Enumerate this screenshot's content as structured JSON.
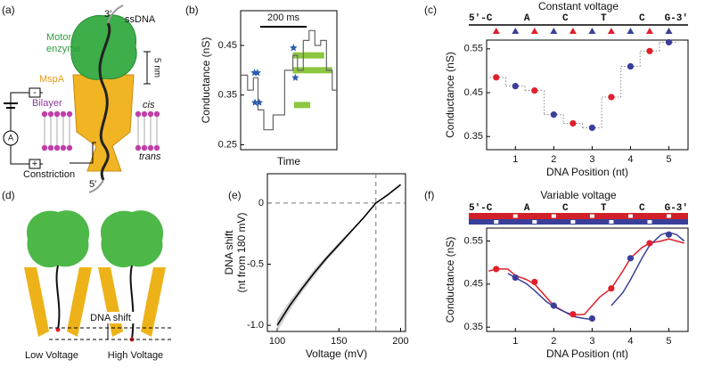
{
  "panel_labels": [
    "(a)",
    "(b)",
    "(c)",
    "(d)",
    "(e)",
    "(f)"
  ],
  "diagram_a": {
    "three_prime": "3′",
    "ssdna": "ssDNA",
    "motor": "Motor",
    "enzyme": "enzyme",
    "mspa": "MspA",
    "bilayer": "Bilayer",
    "scale": "5 nm",
    "cis": "cis",
    "trans": "trans",
    "constriction": "Constriction",
    "five_prime": "5′",
    "ammeter": "A",
    "minus": "-",
    "plus": "+"
  },
  "diagram_d": {
    "shift": "DNA shift",
    "low": "Low Voltage",
    "high": "High Voltage"
  },
  "chart_data": [
    {
      "type": "line",
      "xlabel": "Time",
      "ylabel": "Conductance (nS)",
      "xlim": [
        0,
        415
      ],
      "ylim": [
        0.24,
        0.52
      ],
      "yticks": [
        0.25,
        0.35,
        0.45
      ],
      "scalebar": {
        "length": 200,
        "label": "200 ms"
      },
      "x": [
        0,
        30,
        30,
        55,
        55,
        75,
        75,
        100,
        100,
        140,
        140,
        190,
        190,
        225,
        225,
        245,
        245,
        270,
        270,
        295,
        295,
        320,
        320,
        345,
        345,
        370,
        370,
        395,
        395,
        415
      ],
      "series": [
        {
          "color": "#666666",
          "values": [
            0.39,
            0.39,
            0.36,
            0.36,
            0.385,
            0.385,
            0.32,
            0.32,
            0.28,
            0.28,
            0.31,
            0.31,
            0.4,
            0.4,
            0.43,
            0.43,
            0.4,
            0.4,
            0.46,
            0.46,
            0.48,
            0.48,
            0.45,
            0.45,
            0.46,
            0.46,
            0.4,
            0.4,
            0.36,
            0.36
          ]
        }
      ],
      "markers": {
        "color": "#2a5caa",
        "x": [
          60,
          72,
          62,
          80,
          228,
          236
        ],
        "values": [
          0.395,
          0.395,
          0.335,
          0.335,
          0.445,
          0.385
        ]
      },
      "highlights": {
        "color": "#8dc63f",
        "x_start": [
          225,
          225,
          230
        ],
        "x_end": [
          395,
          360,
          300
        ],
        "values": [
          0.4,
          0.43,
          0.33
        ]
      }
    },
    {
      "type": "scatter",
      "title": "Constant voltage",
      "sequence": [
        "5′-C",
        "A",
        "C",
        "T",
        "C",
        "G-3′"
      ],
      "xlabel": "DNA Position (nt)",
      "ylabel": "Conductance (nS)",
      "xlim": [
        0.25,
        5.5
      ],
      "ylim": [
        0.32,
        0.57
      ],
      "xticks": [
        1,
        2,
        3,
        4,
        5
      ],
      "yticks": [
        0.35,
        0.45,
        0.55
      ],
      "series": [
        {
          "color": "#e0202a",
          "x": [
            0.5,
            1.5,
            2.5,
            3.5,
            4.5
          ],
          "values": [
            0.485,
            0.455,
            0.38,
            0.44,
            0.545
          ]
        },
        {
          "color": "#3a3f9a",
          "x": [
            1,
            2,
            3,
            4,
            5
          ],
          "values": [
            0.465,
            0.4,
            0.37,
            0.51,
            0.565
          ]
        }
      ]
    },
    {
      "type": "line",
      "xlabel": "Voltage (mV)",
      "ylabel": [
        "DNA shift",
        "(nt from 180 mV)"
      ],
      "xlim": [
        92,
        204
      ],
      "ylim": [
        -1.05,
        0.24
      ],
      "xticks": [
        100,
        150,
        200
      ],
      "yticks": [
        {
          "value": -1,
          "label": "-1.0"
        },
        -0.5,
        0
      ],
      "x": [
        100,
        110,
        120,
        130,
        140,
        150,
        160,
        170,
        180,
        190,
        200
      ],
      "series": [
        {
          "color": "#000000",
          "values": [
            -1.0,
            -0.84,
            -0.7,
            -0.57,
            -0.45,
            -0.34,
            -0.23,
            -0.12,
            0,
            0.07,
            0.15
          ],
          "lower": [
            -1.05,
            -0.88,
            -0.73,
            -0.6,
            -0.47,
            -0.36,
            -0.24,
            -0.125,
            0,
            0.065,
            0.14
          ],
          "upper": [
            -0.95,
            -0.8,
            -0.67,
            -0.54,
            -0.43,
            -0.32,
            -0.22,
            -0.115,
            0,
            0.075,
            0.16
          ]
        }
      ],
      "reference_lines": {
        "y": 0,
        "x": 180
      }
    },
    {
      "type": "scatter",
      "title": "Variable voltage",
      "sequence": [
        "5′-C",
        "A",
        "C",
        "T",
        "C",
        "G-3′"
      ],
      "xlabel": "DNA Position (nt)",
      "ylabel": "Conductance (nS)",
      "xlim": [
        0.25,
        5.5
      ],
      "ylim": [
        0.34,
        0.58
      ],
      "xticks": [
        1,
        2,
        3,
        4,
        5
      ],
      "yticks": [
        0.35,
        0.45,
        0.55
      ],
      "series": [
        {
          "color": "#e0202a",
          "x": [
            0.5,
            1.5,
            2.5,
            3.5,
            4.5
          ],
          "values": [
            0.485,
            0.455,
            0.38,
            0.44,
            0.545
          ]
        },
        {
          "color": "#3a3f9a",
          "x": [
            1,
            2,
            3,
            4,
            5
          ],
          "values": [
            0.465,
            0.4,
            0.37,
            0.51,
            0.565
          ]
        }
      ],
      "curves": {
        "x": [
          0.3,
          0.5,
          0.8,
          1.0,
          1.3,
          1.5,
          1.8,
          2.0,
          2.3,
          2.5,
          2.8,
          3.0,
          3.2,
          3.5,
          3.8,
          4.0,
          4.3,
          4.5,
          4.8,
          5.0,
          5.2,
          5.4
        ],
        "series": [
          {
            "color": "#e0202a",
            "values": [
              0.48,
              0.485,
              0.485,
              0.47,
              0.46,
              0.45,
              0.42,
              0.4,
              0.385,
              0.378,
              0.38,
              0.4,
              0.42,
              0.44,
              0.48,
              0.51,
              0.535,
              0.545,
              0.55,
              0.555,
              0.55,
              0.545
            ]
          },
          {
            "color": "#3a3f9a",
            "values": [
              null,
              null,
              0.475,
              0.465,
              0.45,
              0.435,
              0.41,
              0.398,
              0.385,
              0.375,
              0.37,
              0.368,
              null,
              0.4,
              0.43,
              0.46,
              0.51,
              0.54,
              0.565,
              0.57,
              0.565,
              0.55
            ]
          }
        ]
      }
    }
  ]
}
